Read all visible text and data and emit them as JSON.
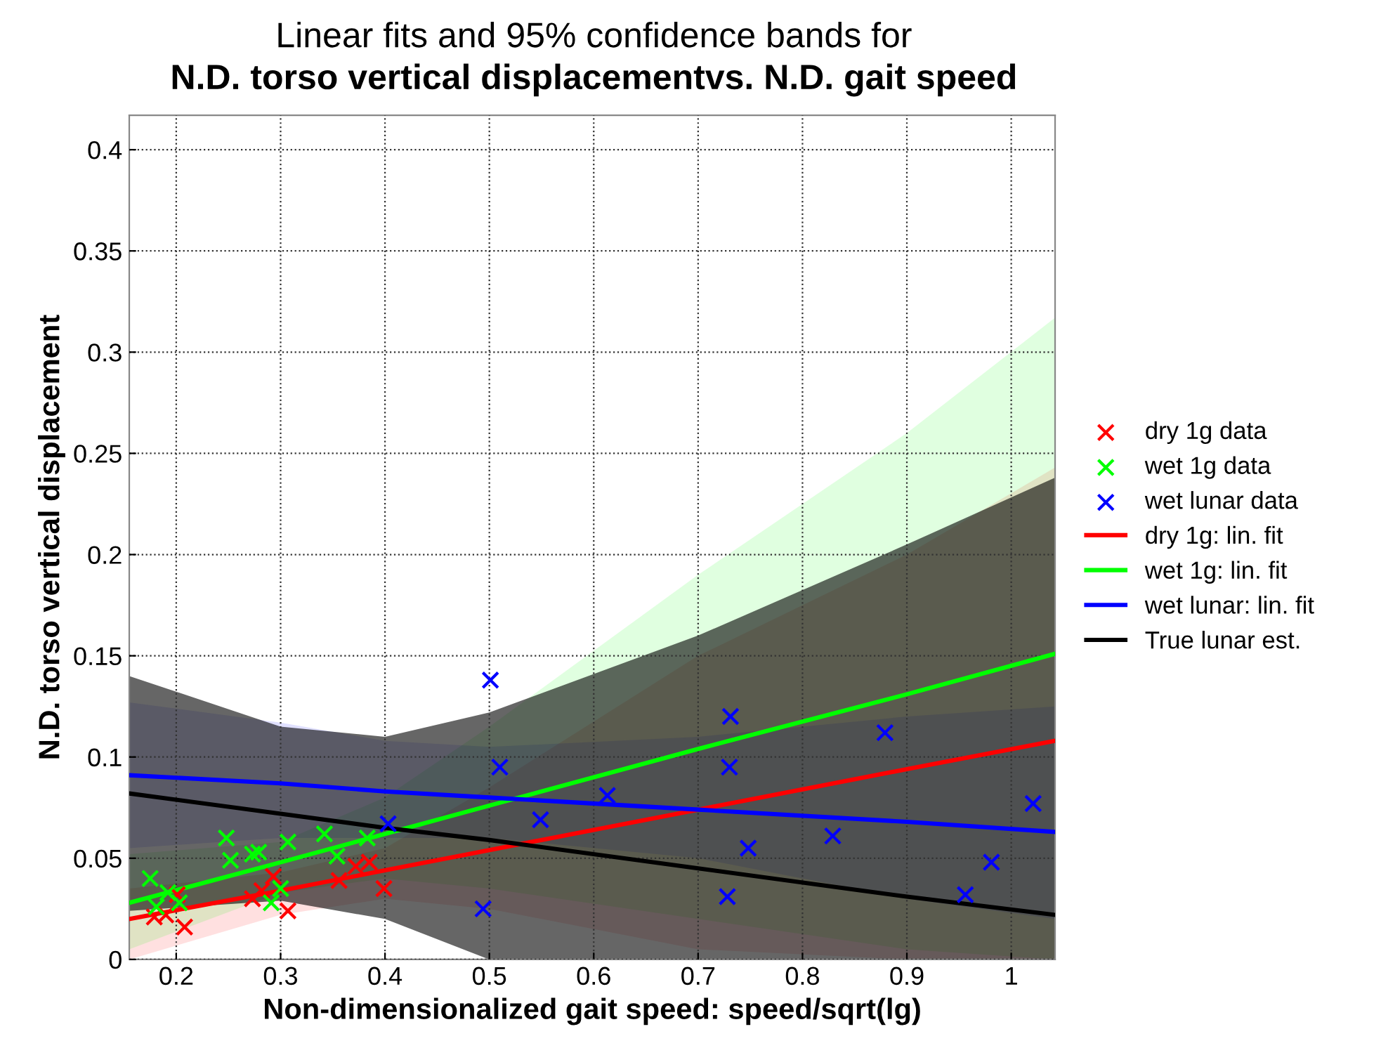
{
  "chart_data": {
    "type": "scatter",
    "title": "Linear fits and 95% confidence bands for",
    "subtitle": "N.D. torso vertical displacementvs. N.D. gait speed",
    "xlabel": "Non-dimensionalized gait speed: speed/sqrt(lg)",
    "ylabel": "N.D. torso vertical displacement",
    "xlim": [
      0.155,
      1.042
    ],
    "ylim": [
      0,
      0.417
    ],
    "xticks": [
      0.2,
      0.3,
      0.4,
      0.5,
      0.6,
      0.7,
      0.8,
      0.9,
      1
    ],
    "yticks": [
      0,
      0.05,
      0.1,
      0.15,
      0.2,
      0.25,
      0.3,
      0.35,
      0.4
    ],
    "grid": true,
    "legend": "right",
    "series": [
      {
        "name": "dry 1g data",
        "marker": "cross",
        "color": "#ff0000",
        "x": [
          0.179,
          0.19,
          0.201,
          0.208,
          0.273,
          0.282,
          0.293,
          0.307,
          0.356,
          0.372,
          0.385,
          0.399
        ],
        "values": [
          0.021,
          0.022,
          0.032,
          0.016,
          0.03,
          0.034,
          0.041,
          0.024,
          0.039,
          0.046,
          0.048,
          0.035
        ]
      },
      {
        "name": "wet 1g data",
        "marker": "cross",
        "color": "#00ff00",
        "x": [
          0.175,
          0.192,
          0.181,
          0.203,
          0.248,
          0.252,
          0.273,
          0.279,
          0.3,
          0.291,
          0.307,
          0.342,
          0.354,
          0.383
        ],
        "values": [
          0.04,
          0.033,
          0.026,
          0.028,
          0.06,
          0.049,
          0.052,
          0.053,
          0.035,
          0.028,
          0.058,
          0.062,
          0.051,
          0.06
        ]
      },
      {
        "name": "wet lunar data",
        "marker": "cross",
        "color": "#0000ff",
        "x": [
          0.403,
          0.494,
          0.501,
          0.51,
          0.549,
          0.613,
          0.728,
          0.73,
          0.731,
          0.748,
          0.829,
          0.879,
          0.956,
          0.981,
          1.021
        ],
        "values": [
          0.067,
          0.025,
          0.138,
          0.095,
          0.069,
          0.081,
          0.031,
          0.095,
          0.12,
          0.055,
          0.061,
          0.112,
          0.032,
          0.048,
          0.077
        ]
      },
      {
        "name": "dry 1g: lin. fit",
        "type": "line",
        "marker": "none",
        "color": "#ff0000",
        "x": [
          0.155,
          0.3,
          0.4,
          0.5,
          0.7,
          0.9,
          1.042
        ],
        "values": [
          0.02,
          0.034,
          0.044,
          0.054,
          0.074,
          0.094,
          0.108
        ],
        "lower": [
          0,
          0.022,
          0.03,
          0.025,
          0.005,
          0,
          0
        ],
        "upper": [
          0.035,
          0.043,
          0.055,
          0.085,
          0.15,
          0.2,
          0.243
        ]
      },
      {
        "name": "wet 1g: lin. fit",
        "type": "line",
        "marker": "none",
        "color": "#00ff00",
        "x": [
          0.155,
          0.3,
          0.4,
          0.5,
          0.7,
          0.9,
          1.042
        ],
        "values": [
          0.028,
          0.048,
          0.062,
          0.076,
          0.104,
          0.131,
          0.151
        ],
        "lower": [
          0.005,
          0.033,
          0.04,
          0.035,
          0.02,
          0.005,
          0
        ],
        "upper": [
          0.052,
          0.058,
          0.08,
          0.115,
          0.19,
          0.26,
          0.317
        ]
      },
      {
        "name": "wet lunar: lin. fit",
        "type": "line",
        "marker": "none",
        "color": "#0000ff",
        "x": [
          0.155,
          0.3,
          0.4,
          0.5,
          0.7,
          0.9,
          1.042
        ],
        "values": [
          0.091,
          0.087,
          0.083,
          0.08,
          0.074,
          0.068,
          0.063
        ],
        "lower": [
          0.055,
          0.06,
          0.06,
          0.06,
          0.05,
          0.03,
          0.02
        ],
        "upper": [
          0.127,
          0.117,
          0.108,
          0.105,
          0.11,
          0.12,
          0.125
        ]
      },
      {
        "name": "True lunar est.",
        "type": "line",
        "marker": "none",
        "color": "#000000",
        "x": [
          0.155,
          0.3,
          0.4,
          0.5,
          0.7,
          0.9,
          1.042
        ],
        "values": [
          0.082,
          0.072,
          0.065,
          0.059,
          0.045,
          0.031,
          0.022
        ],
        "lower": [
          0.024,
          0.029,
          0.02,
          0,
          0,
          0,
          0
        ],
        "upper": [
          0.14,
          0.115,
          0.11,
          0.122,
          0.16,
          0.205,
          0.238
        ]
      }
    ]
  }
}
